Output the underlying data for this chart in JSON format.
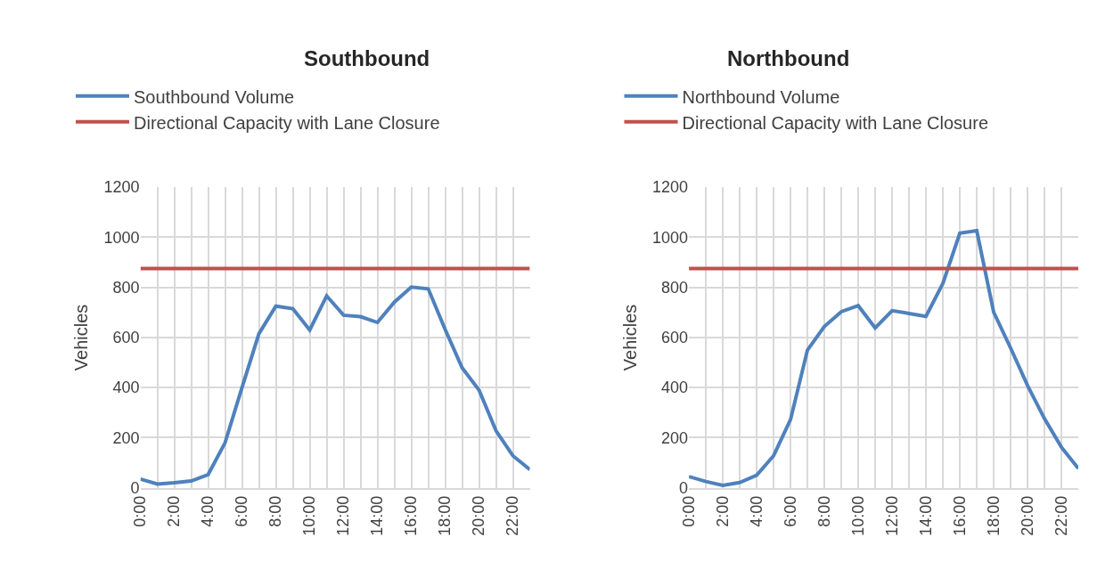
{
  "chart_data": [
    {
      "type": "line",
      "title": "Southbound",
      "ylabel": "Vehicles",
      "categories": [
        "0:00",
        null,
        "2:00",
        null,
        "4:00",
        null,
        "6:00",
        null,
        "8:00",
        null,
        "10:00",
        null,
        "12:00",
        null,
        "14:00",
        null,
        "16:00",
        null,
        "18:00",
        null,
        "20:00",
        null,
        "22:00",
        null
      ],
      "ylim": [
        0,
        1200
      ],
      "yticks": [
        0,
        200,
        400,
        600,
        800,
        1000,
        1200
      ],
      "grid": true,
      "legend": "top",
      "series": [
        {
          "name": "Southbound Volume",
          "color": "#4f81bd",
          "values": [
            35,
            15,
            20,
            27,
            53,
            180,
            400,
            615,
            725,
            715,
            630,
            766,
            689,
            683,
            660,
            741,
            801,
            794,
            632,
            479,
            390,
            228,
            128,
            73
          ]
        },
        {
          "name": "Directional Capacity with Lane Closure",
          "color": "#c0504d",
          "values": [
            875,
            875,
            875,
            875,
            875,
            875,
            875,
            875,
            875,
            875,
            875,
            875,
            875,
            875,
            875,
            875,
            875,
            875,
            875,
            875,
            875,
            875,
            875,
            875
          ]
        }
      ]
    },
    {
      "type": "line",
      "title": "Northbound",
      "ylabel": "Vehicles",
      "categories": [
        "0:00",
        null,
        "2:00",
        null,
        "4:00",
        null,
        "6:00",
        null,
        "8:00",
        null,
        "10:00",
        null,
        "12:00",
        null,
        "14:00",
        null,
        "16:00",
        null,
        "18:00",
        null,
        "20:00",
        null,
        "22:00",
        null
      ],
      "ylim": [
        0,
        1200
      ],
      "yticks": [
        0,
        200,
        400,
        600,
        800,
        1000,
        1200
      ],
      "grid": true,
      "legend": "top",
      "series": [
        {
          "name": "Northbound Volume",
          "color": "#4f81bd",
          "values": [
            45,
            25,
            10,
            21,
            50,
            128,
            272,
            550,
            644,
            703,
            727,
            638,
            707,
            696,
            684,
            816,
            1016,
            1026,
            701,
            558,
            408,
            276,
            162,
            77
          ]
        },
        {
          "name": "Directional Capacity with Lane Closure",
          "color": "#c0504d",
          "values": [
            875,
            875,
            875,
            875,
            875,
            875,
            875,
            875,
            875,
            875,
            875,
            875,
            875,
            875,
            875,
            875,
            875,
            875,
            875,
            875,
            875,
            875,
            875,
            875
          ]
        }
      ]
    }
  ]
}
